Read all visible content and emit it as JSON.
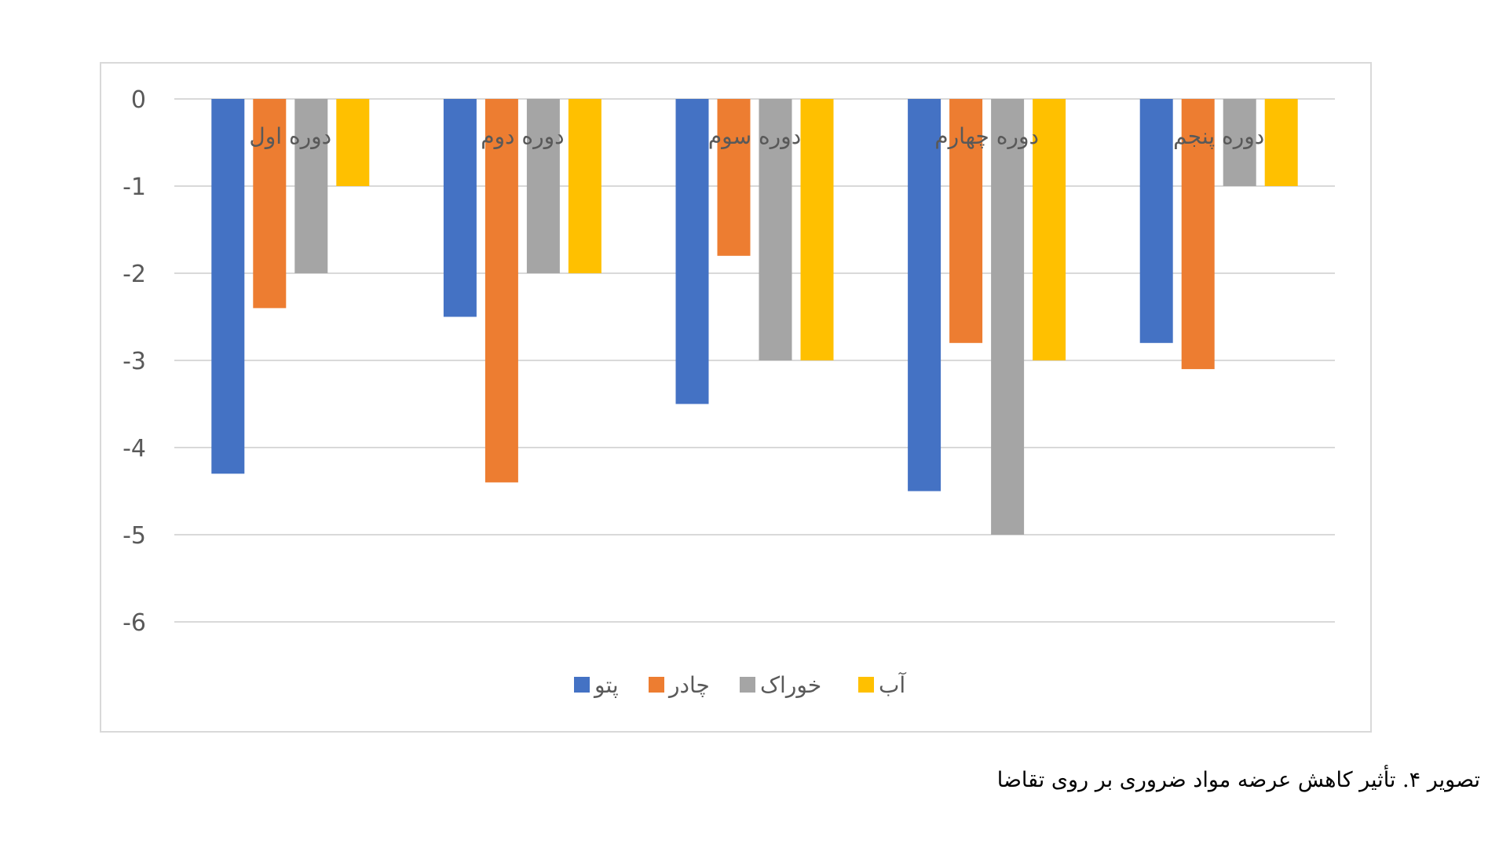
{
  "caption": "تصویر ۴. تأثیر کاهش عرضه مواد ضروری بر روی تقاضا",
  "chart_data": {
    "type": "bar",
    "categories": [
      "دوره اول",
      "دوره دوم",
      "دوره سوم",
      "دوره چهارم",
      "دوره پنجم"
    ],
    "series": [
      {
        "name": "پتو",
        "color": "#4472C4",
        "values": [
          -4.3,
          -2.5,
          -3.5,
          -4.5,
          -2.8
        ]
      },
      {
        "name": "چادر",
        "color": "#ED7D31",
        "values": [
          -2.4,
          -4.4,
          -1.8,
          -2.8,
          -3.1
        ]
      },
      {
        "name": "خوراک",
        "color": "#A5A5A5",
        "values": [
          -2,
          -2,
          -3,
          -5,
          -1
        ]
      },
      {
        "name": "آب",
        "color": "#FFC000",
        "values": [
          -1,
          -2,
          -3,
          -3,
          -1
        ]
      }
    ],
    "yticks": [
      "0",
      "-1",
      "-2",
      "-3",
      "-4",
      "-5",
      "-6"
    ],
    "ylim": [
      -6,
      0
    ],
    "grid": true,
    "legend": "bottom",
    "title": "",
    "xlabel": "",
    "ylabel": ""
  }
}
